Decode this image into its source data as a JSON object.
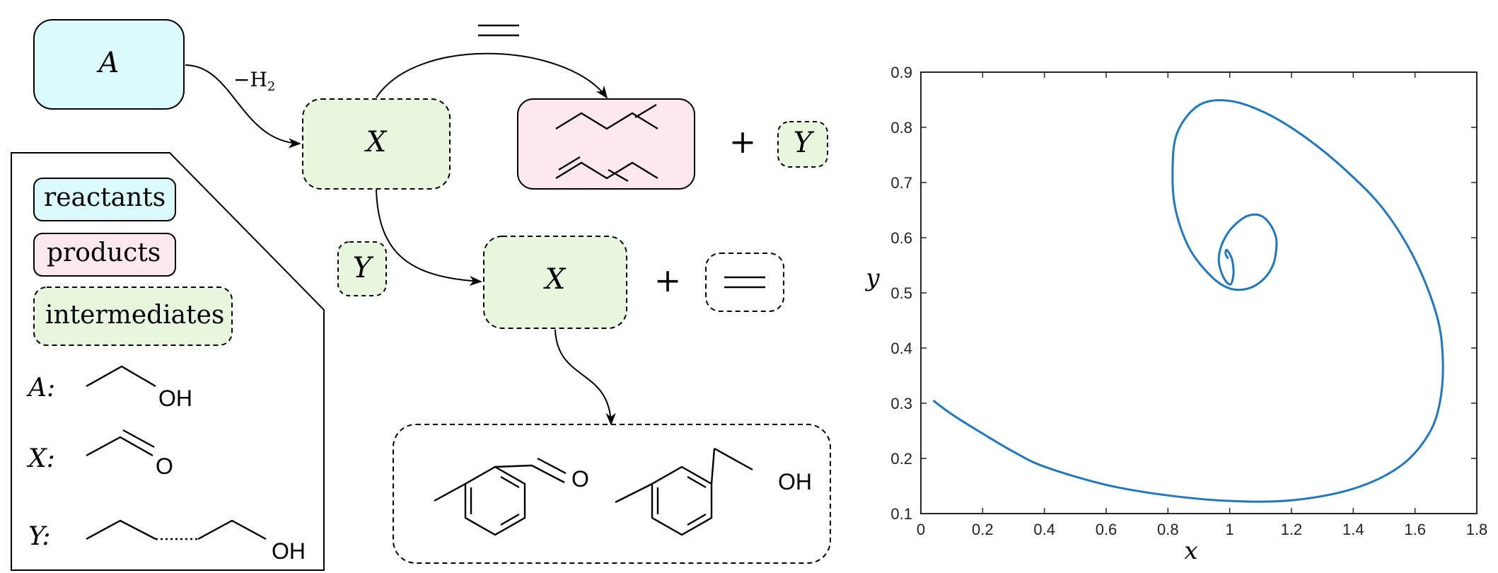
{
  "diagram": {
    "nodes": {
      "A": "A",
      "X_top": "X",
      "X_mid": "X",
      "Y_right": "Y",
      "Y_left": "Y"
    },
    "edge_label_h2": "−H",
    "edge_label_h2_sub": "2",
    "plus_top": "+",
    "plus_mid": "+",
    "legend": {
      "reactants": "reactants",
      "products": "products",
      "intermediates": "intermediates",
      "key_A": "A:",
      "key_X": "X:",
      "key_Y": "Y:",
      "atom_OH_A": "OH",
      "atom_O_X": "O",
      "atom_OH_Y": "OH"
    },
    "atoms": {
      "aldehyde_O": "O",
      "alcohol_OH": "OH"
    },
    "colors": {
      "reactants": "#dafafb",
      "products": "#fde8ef",
      "intermediates": "#e6f7dd",
      "curve": "#1f77c0"
    }
  },
  "chart_data": {
    "type": "line",
    "xlabel": "x",
    "ylabel": "y",
    "xlim": [
      0,
      1.8
    ],
    "ylim": [
      0.1,
      0.9
    ],
    "xticks": [
      "0",
      "0.2",
      "0.4",
      "0.6",
      "0.8",
      "1",
      "1.2",
      "1.4",
      "1.6",
      "1.8"
    ],
    "yticks": [
      "0.1",
      "0.2",
      "0.3",
      "0.4",
      "0.5",
      "0.6",
      "0.7",
      "0.8",
      "0.9"
    ],
    "grid": false,
    "series": [
      {
        "x": [
          0.04,
          0.1,
          0.2,
          0.3,
          0.4,
          0.6,
          0.8,
          1.0,
          1.2,
          1.4,
          1.55,
          1.64,
          1.68,
          1.69,
          1.67,
          1.6,
          1.5,
          1.38,
          1.25,
          1.12,
          1.0,
          0.9,
          0.83,
          0.815,
          0.825,
          0.87,
          0.94,
          1.0,
          1.06,
          1.11,
          1.14,
          1.15,
          1.15,
          1.13,
          1.1,
          1.06,
          1.02,
          0.99,
          0.97,
          0.965,
          0.98,
          1.0,
          1.01,
          1.012,
          1.005,
          0.99,
          0.987,
          0.995
        ],
        "y": [
          0.305,
          0.28,
          0.245,
          0.212,
          0.185,
          0.152,
          0.133,
          0.123,
          0.124,
          0.145,
          0.185,
          0.24,
          0.3,
          0.38,
          0.46,
          0.56,
          0.65,
          0.72,
          0.78,
          0.825,
          0.848,
          0.84,
          0.79,
          0.72,
          0.65,
          0.58,
          0.53,
          0.508,
          0.508,
          0.525,
          0.55,
          0.575,
          0.6,
          0.625,
          0.64,
          0.64,
          0.625,
          0.605,
          0.58,
          0.555,
          0.528,
          0.515,
          0.525,
          0.545,
          0.565,
          0.578,
          0.57,
          0.562
        ]
      }
    ]
  }
}
